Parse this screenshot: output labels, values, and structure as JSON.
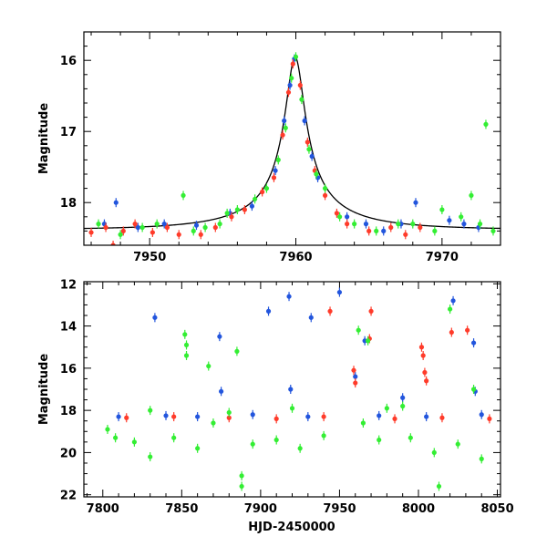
{
  "chart_data": [
    {
      "type": "scatter",
      "title": "",
      "xlabel": "",
      "ylabel": "Magnitude",
      "xlim": [
        7945.5,
        7974
      ],
      "ylim": [
        18.6,
        15.6
      ],
      "y_inverted": true,
      "x_ticks": [
        7950,
        7960,
        7970
      ],
      "x_tick_labels": [
        "7950",
        "7960",
        "7970"
      ],
      "y_ticks": [
        16,
        17,
        18
      ],
      "y_tick_labels": [
        "16",
        "17",
        "18"
      ],
      "model_curve": {
        "color": "#000000",
        "baseline": 18.38,
        "t0": 7959.95,
        "peak": 15.95,
        "u0": 0.09,
        "tE": 7.5
      },
      "series": [
        {
          "color": "#2255dd",
          "points": [
            [
              7946.9,
              18.3
            ],
            [
              7947.7,
              18.0
            ],
            [
              7949.2,
              18.35
            ],
            [
              7951.0,
              18.3
            ],
            [
              7953.2,
              18.32
            ],
            [
              7955.5,
              18.15
            ],
            [
              7957.0,
              18.05
            ],
            [
              7958.6,
              17.55
            ],
            [
              7959.2,
              16.85
            ],
            [
              7959.6,
              16.35
            ],
            [
              7959.9,
              15.98
            ],
            [
              7960.6,
              16.85
            ],
            [
              7961.1,
              17.35
            ],
            [
              7961.5,
              17.65
            ],
            [
              7963.5,
              18.2
            ],
            [
              7964.8,
              18.3
            ],
            [
              7966.0,
              18.4
            ],
            [
              7967.2,
              18.3
            ],
            [
              7968.2,
              18.0
            ],
            [
              7970.5,
              18.25
            ],
            [
              7971.5,
              18.3
            ],
            [
              7972.5,
              18.35
            ]
          ]
        },
        {
          "color": "#ff3b2a",
          "points": [
            [
              7946.0,
              18.42
            ],
            [
              7947.0,
              18.35
            ],
            [
              7947.5,
              18.6
            ],
            [
              7948.2,
              18.4
            ],
            [
              7949.0,
              18.3
            ],
            [
              7950.2,
              18.42
            ],
            [
              7951.2,
              18.35
            ],
            [
              7952.0,
              18.45
            ],
            [
              7953.5,
              18.45
            ],
            [
              7954.5,
              18.35
            ],
            [
              7955.6,
              18.2
            ],
            [
              7956.5,
              18.1
            ],
            [
              7957.7,
              17.85
            ],
            [
              7958.5,
              17.65
            ],
            [
              7959.1,
              17.05
            ],
            [
              7959.5,
              16.45
            ],
            [
              7959.8,
              16.05
            ],
            [
              7960.3,
              16.35
            ],
            [
              7960.8,
              17.15
            ],
            [
              7961.3,
              17.55
            ],
            [
              7962.0,
              17.9
            ],
            [
              7962.8,
              18.15
            ],
            [
              7963.5,
              18.3
            ],
            [
              7965.0,
              18.4
            ],
            [
              7966.5,
              18.35
            ],
            [
              7967.5,
              18.45
            ],
            [
              7968.5,
              18.35
            ]
          ]
        },
        {
          "color": "#33ee33",
          "points": [
            [
              7946.5,
              18.3
            ],
            [
              7948.0,
              18.45
            ],
            [
              7949.5,
              18.35
            ],
            [
              7950.5,
              18.3
            ],
            [
              7952.3,
              17.9
            ],
            [
              7953.0,
              18.4
            ],
            [
              7953.8,
              18.35
            ],
            [
              7954.8,
              18.3
            ],
            [
              7955.3,
              18.15
            ],
            [
              7956.0,
              18.1
            ],
            [
              7957.2,
              17.95
            ],
            [
              7958.0,
              17.8
            ],
            [
              7958.8,
              17.4
            ],
            [
              7959.3,
              16.95
            ],
            [
              7959.7,
              16.25
            ],
            [
              7960.0,
              15.95
            ],
            [
              7960.4,
              16.55
            ],
            [
              7960.9,
              17.25
            ],
            [
              7961.4,
              17.6
            ],
            [
              7962.0,
              17.8
            ],
            [
              7963.0,
              18.2
            ],
            [
              7964.0,
              18.3
            ],
            [
              7965.5,
              18.4
            ],
            [
              7967.0,
              18.3
            ],
            [
              7968.0,
              18.3
            ],
            [
              7969.5,
              18.4
            ],
            [
              7970.0,
              18.1
            ],
            [
              7971.3,
              18.2
            ],
            [
              7972.0,
              17.9
            ],
            [
              7972.6,
              18.3
            ],
            [
              7973.0,
              16.9
            ],
            [
              7973.5,
              18.4
            ]
          ]
        }
      ]
    },
    {
      "type": "scatter",
      "title": "",
      "xlabel": "HJD-2450000",
      "ylabel": "Magnitude",
      "xlim": [
        7788,
        8052
      ],
      "ylim": [
        22.1,
        11.9
      ],
      "y_inverted": true,
      "x_ticks": [
        7800,
        7850,
        7900,
        7950,
        8000,
        8050
      ],
      "x_tick_labels": [
        "7800",
        "7850",
        "7900",
        "7950",
        "8000",
        "8050"
      ],
      "y_ticks": [
        12,
        14,
        16,
        18,
        20,
        22
      ],
      "y_tick_labels": [
        "12",
        "14",
        "16",
        "18",
        "20",
        "22"
      ],
      "series": [
        {
          "color": "#2255dd",
          "points": [
            [
              7833,
              13.6
            ],
            [
              7874,
              14.5
            ],
            [
              7875,
              17.1
            ],
            [
              7905,
              13.3
            ],
            [
              7918,
              12.6
            ],
            [
              7919,
              17.0
            ],
            [
              7932,
              13.6
            ],
            [
              7950,
              12.4
            ],
            [
              7960,
              16.4
            ],
            [
              7966,
              14.7
            ],
            [
              7990,
              17.4
            ],
            [
              8022,
              12.8
            ],
            [
              8035,
              14.8
            ],
            [
              8036,
              17.1
            ],
            [
              7810,
              18.3
            ],
            [
              7840,
              18.25
            ],
            [
              7860,
              18.3
            ],
            [
              7895,
              18.2
            ],
            [
              7930,
              18.3
            ],
            [
              7975,
              18.25
            ],
            [
              8005,
              18.3
            ],
            [
              8040,
              18.2
            ]
          ]
        },
        {
          "color": "#ff3b2a",
          "points": [
            [
              7944,
              13.3
            ],
            [
              7970,
              13.3
            ],
            [
              7959,
              16.1
            ],
            [
              7960,
              16.7
            ],
            [
              7969,
              14.6
            ],
            [
              8002,
              15.0
            ],
            [
              8003,
              15.4
            ],
            [
              8004,
              16.2
            ],
            [
              8005,
              16.6
            ],
            [
              8021,
              14.3
            ],
            [
              8031,
              14.2
            ],
            [
              7815,
              18.35
            ],
            [
              7845,
              18.3
            ],
            [
              7880,
              18.35
            ],
            [
              7910,
              18.4
            ],
            [
              7940,
              18.3
            ],
            [
              7985,
              18.4
            ],
            [
              8015,
              18.35
            ],
            [
              8045,
              18.4
            ]
          ]
        },
        {
          "color": "#33ee33",
          "points": [
            [
              7852,
              14.4
            ],
            [
              7853,
              14.9
            ],
            [
              7853,
              15.4
            ],
            [
              7867,
              15.9
            ],
            [
              7885,
              15.2
            ],
            [
              7888,
              21.6
            ],
            [
              7888,
              21.1
            ],
            [
              7962,
              14.2
            ],
            [
              7968,
              14.7
            ],
            [
              7980,
              17.9
            ],
            [
              8013,
              21.6
            ],
            [
              8020,
              13.2
            ],
            [
              8035,
              17.0
            ],
            [
              7803,
              18.9
            ],
            [
              7808,
              19.3
            ],
            [
              7820,
              19.5
            ],
            [
              7830,
              20.2
            ],
            [
              7845,
              19.3
            ],
            [
              7860,
              19.8
            ],
            [
              7870,
              18.6
            ],
            [
              7895,
              19.6
            ],
            [
              7910,
              19.4
            ],
            [
              7925,
              19.8
            ],
            [
              7940,
              19.2
            ],
            [
              7965,
              18.6
            ],
            [
              7975,
              19.4
            ],
            [
              7995,
              19.3
            ],
            [
              8010,
              20.0
            ],
            [
              8025,
              19.6
            ],
            [
              8040,
              20.3
            ],
            [
              7830,
              18.0
            ],
            [
              7880,
              18.1
            ],
            [
              7920,
              17.9
            ],
            [
              7990,
              17.8
            ]
          ]
        }
      ]
    }
  ]
}
